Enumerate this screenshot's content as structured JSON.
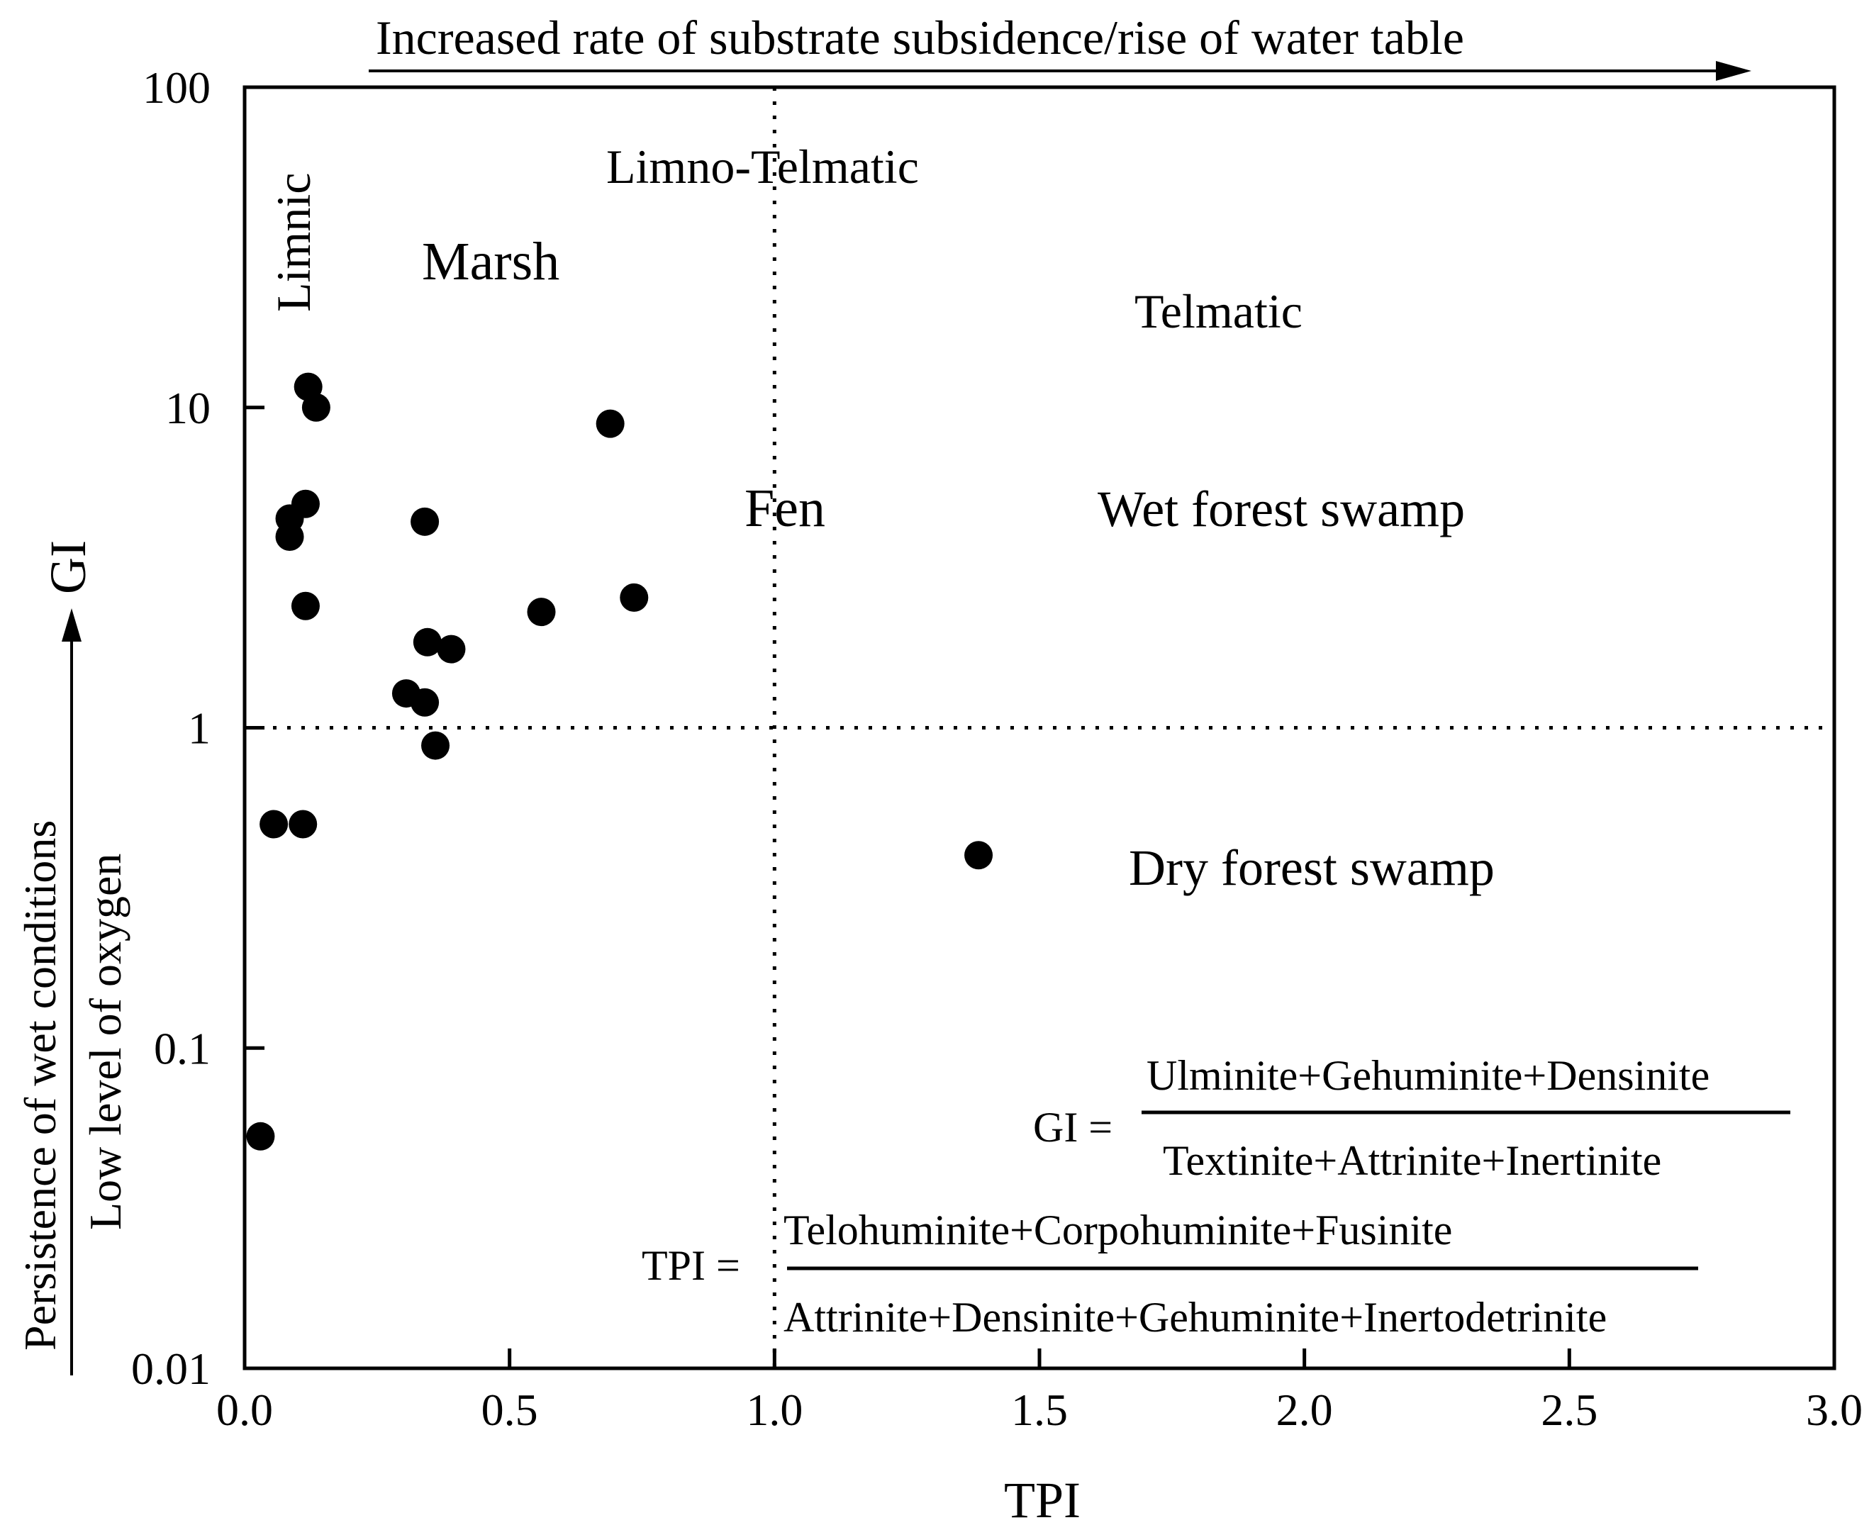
{
  "chart_data": {
    "type": "scatter",
    "xlabel": "TPI",
    "ylabel": "GI",
    "xlim": [
      0,
      3
    ],
    "ylim": [
      0.01,
      100
    ],
    "y_scale": "log",
    "x_ticks": [
      "0.0",
      "0.5",
      "1.0",
      "1.5",
      "2.0",
      "2.5",
      "3.0"
    ],
    "x_tick_values": [
      0,
      0.5,
      1,
      1.5,
      2,
      2.5,
      3
    ],
    "y_ticks": [
      "0.01",
      "0.1",
      "1",
      "10",
      "100"
    ],
    "y_tick_values": [
      0.01,
      0.1,
      1,
      10,
      100
    ],
    "reference_lines": {
      "x": 1.0,
      "y": 1.0,
      "style": "dotted"
    },
    "top_arrow_label": "Increased rate of substrate subsidence/rise of water table",
    "left_arrow_label_1": "Persistence of wet conditions",
    "left_arrow_label_2": "Low level of oxygen",
    "region_labels": {
      "limnic": "Limnic",
      "limno_telmatic": "Limno-Telmatic",
      "marsh": "Marsh",
      "telmatic": "Telmatic",
      "fen": "Fen",
      "wet_forest_swamp": "Wet forest swamp",
      "dry_forest_swamp": "Dry forest swamp"
    },
    "formulas": {
      "gi_lhs": "GI =",
      "gi_numerator": "Ulminite+Gehuminite+Densinite",
      "gi_denominator": "Textinite+Attrinite+Inertinite",
      "tpi_lhs": "TPI =",
      "tpi_numerator": "Telohuminite+Corpohuminite+Fusinite",
      "tpi_denominator": "Attrinite+Densinite+Gehuminite+Inertodetrinite"
    },
    "points": [
      {
        "x": 0.12,
        "y": 11.6
      },
      {
        "x": 0.135,
        "y": 10.0
      },
      {
        "x": 0.69,
        "y": 8.9
      },
      {
        "x": 0.115,
        "y": 5.0
      },
      {
        "x": 0.085,
        "y": 4.5
      },
      {
        "x": 0.34,
        "y": 4.4
      },
      {
        "x": 0.085,
        "y": 3.95
      },
      {
        "x": 0.735,
        "y": 2.55
      },
      {
        "x": 0.115,
        "y": 2.4
      },
      {
        "x": 0.56,
        "y": 2.3
      },
      {
        "x": 0.345,
        "y": 1.85
      },
      {
        "x": 0.39,
        "y": 1.76
      },
      {
        "x": 0.305,
        "y": 1.28
      },
      {
        "x": 0.34,
        "y": 1.2
      },
      {
        "x": 0.36,
        "y": 0.88
      },
      {
        "x": 0.055,
        "y": 0.5
      },
      {
        "x": 0.11,
        "y": 0.5
      },
      {
        "x": 1.385,
        "y": 0.4
      },
      {
        "x": 0.03,
        "y": 0.053
      }
    ]
  }
}
